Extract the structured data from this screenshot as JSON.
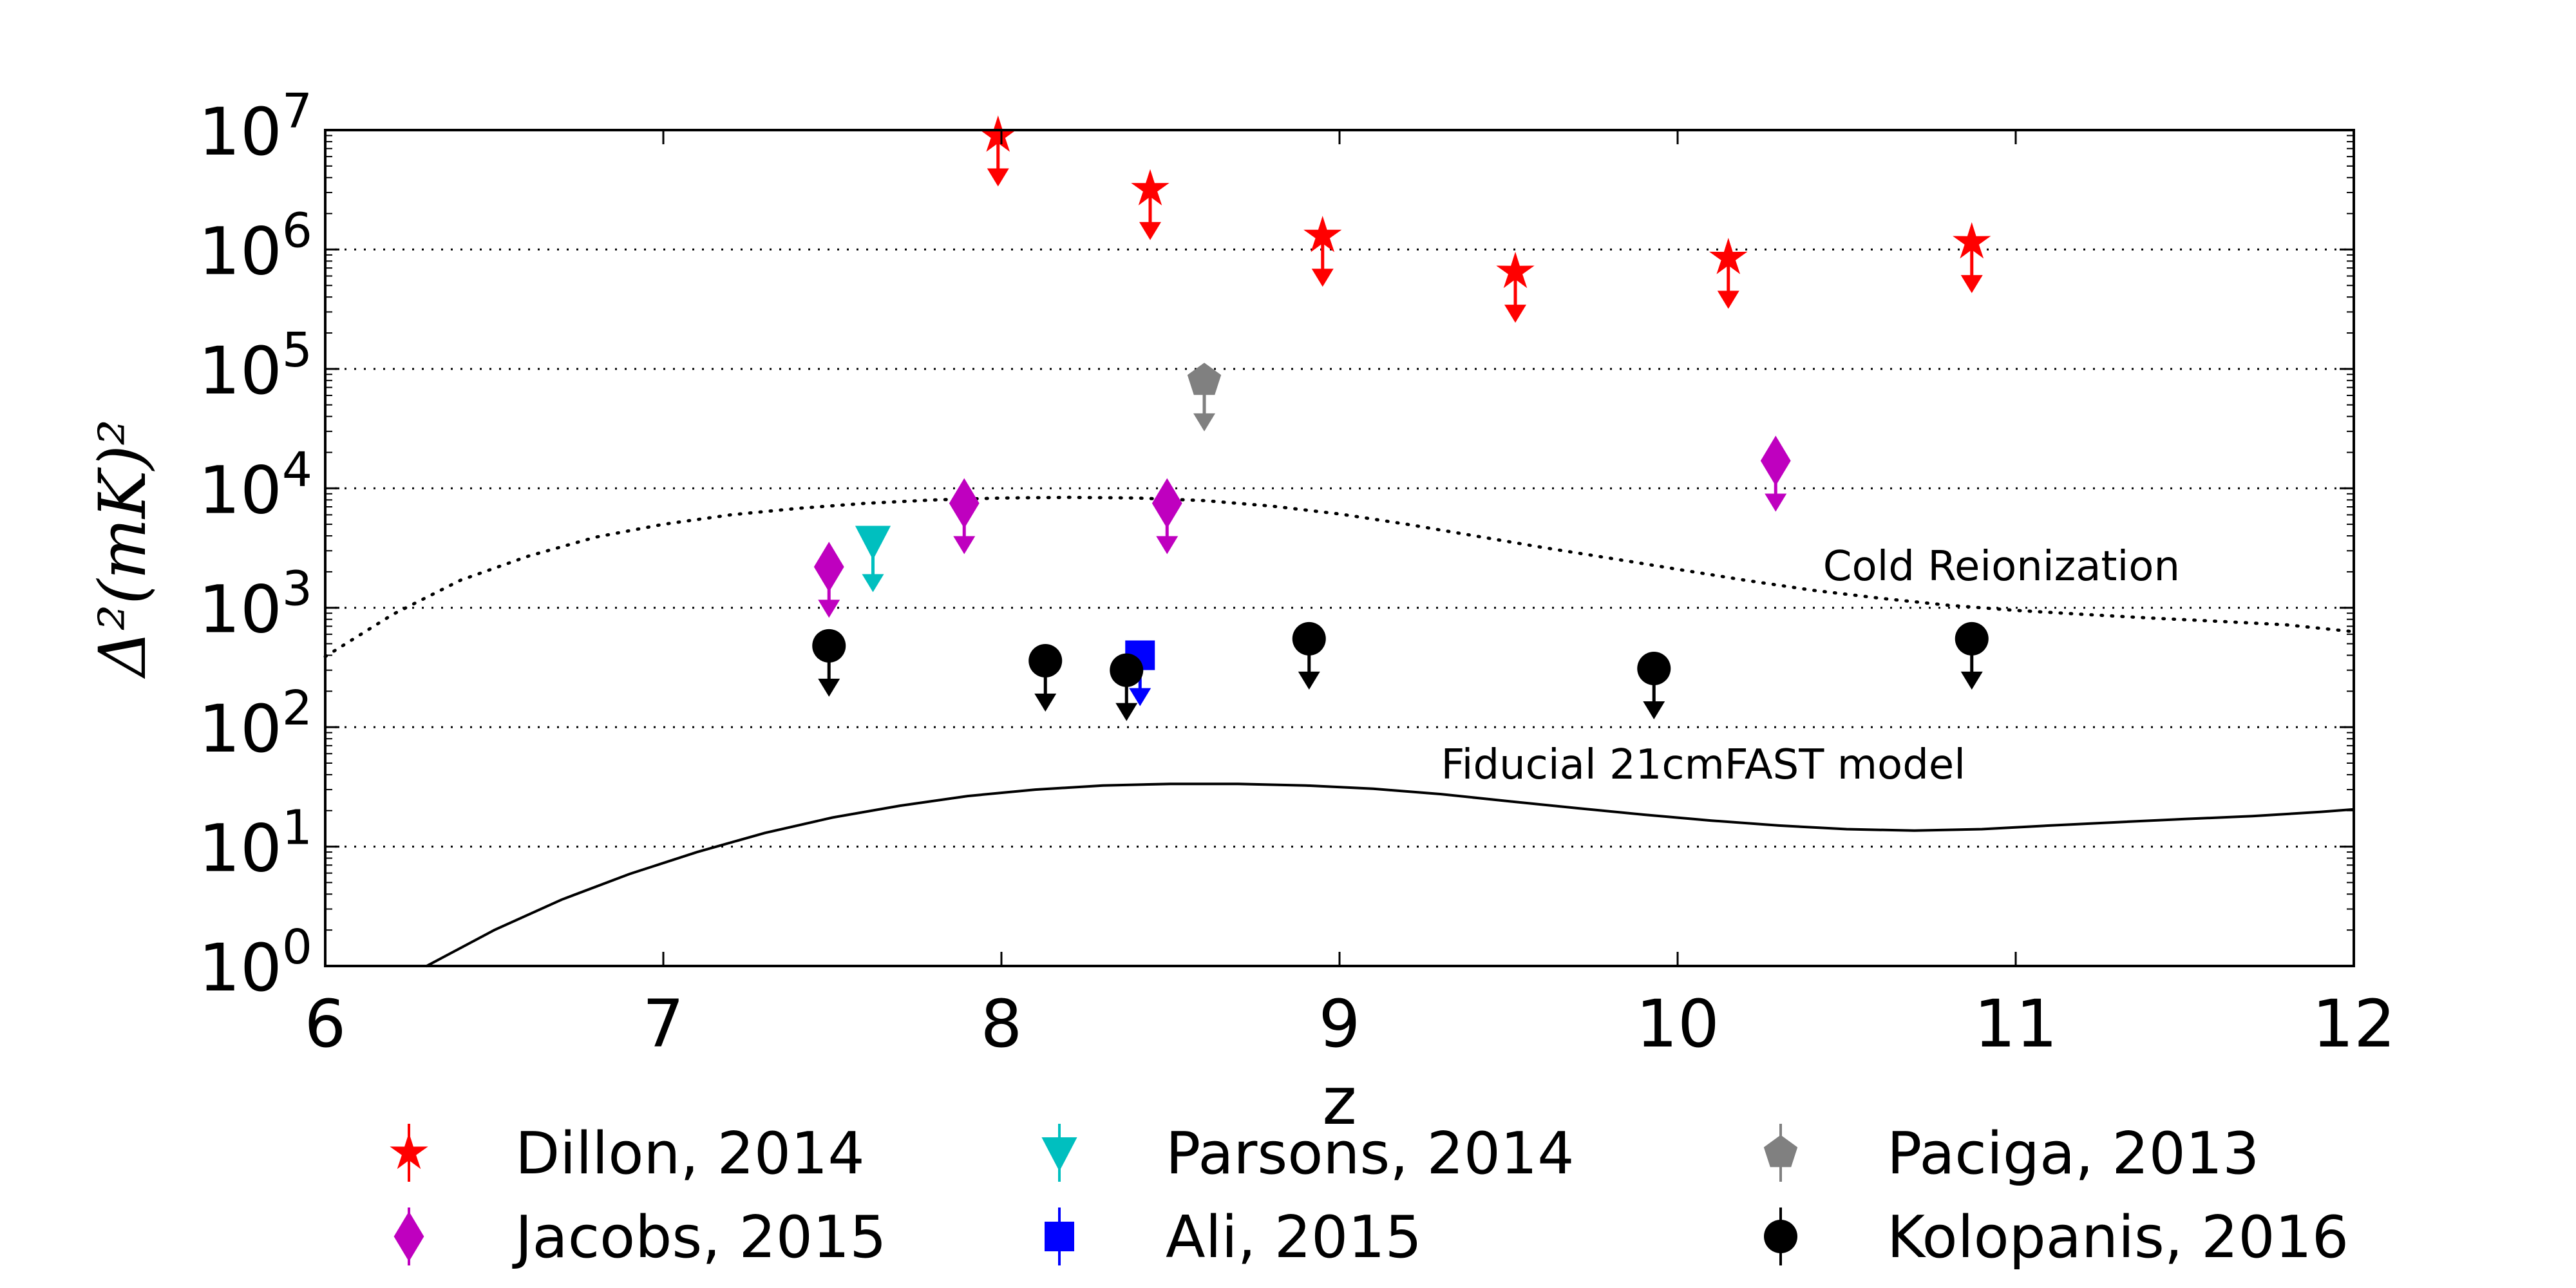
{
  "chart_data": {
    "type": "scatter",
    "xlabel": "z",
    "ylabel": "Δ²(mK)²",
    "xlim": [
      6,
      12
    ],
    "ylim": [
      1,
      10000000
    ],
    "yscale": "log",
    "grid": "horizontal dotted",
    "xticks": [
      6,
      7,
      8,
      9,
      10,
      11,
      12
    ],
    "yticks": [
      {
        "value": 1,
        "base": "10",
        "exp": "0"
      },
      {
        "value": 10,
        "base": "10",
        "exp": "1"
      },
      {
        "value": 100,
        "base": "10",
        "exp": "2"
      },
      {
        "value": 1000,
        "base": "10",
        "exp": "3"
      },
      {
        "value": 10000,
        "base": "10",
        "exp": "4"
      },
      {
        "value": 100000,
        "base": "10",
        "exp": "5"
      },
      {
        "value": 1000000,
        "base": "10",
        "exp": "6"
      },
      {
        "value": 10000000,
        "base": "10",
        "exp": "7"
      }
    ],
    "legend_position": "below plot, three columns",
    "series": [
      {
        "name": "Dillon, 2014",
        "color": "#ff0000",
        "marker": "star",
        "points": [
          {
            "x": 7.99,
            "y": 9000000
          },
          {
            "x": 8.44,
            "y": 3200000
          },
          {
            "x": 8.95,
            "y": 1300000
          },
          {
            "x": 9.52,
            "y": 650000
          },
          {
            "x": 10.15,
            "y": 850000
          },
          {
            "x": 10.87,
            "y": 1150000
          }
        ]
      },
      {
        "name": "Jacobs, 2015",
        "color": "#bf00bf",
        "marker": "thin_diamond",
        "points": [
          {
            "x": 7.49,
            "y": 2200
          },
          {
            "x": 7.89,
            "y": 7500
          },
          {
            "x": 8.49,
            "y": 7500
          },
          {
            "x": 10.29,
            "y": 17000
          }
        ]
      },
      {
        "name": "Parsons, 2014",
        "color": "#00bfbf",
        "marker": "triangle_down",
        "points": [
          {
            "x": 7.62,
            "y": 3600
          }
        ]
      },
      {
        "name": "Ali, 2015",
        "color": "#0000ff",
        "marker": "square",
        "points": [
          {
            "x": 8.41,
            "y": 400
          }
        ]
      },
      {
        "name": "Paciga, 2013",
        "color": "#808080",
        "marker": "pentagon",
        "points": [
          {
            "x": 8.6,
            "y": 80000
          }
        ]
      },
      {
        "name": "Kolopanis, 2016",
        "color": "#000000",
        "marker": "circle",
        "points": [
          {
            "x": 7.49,
            "y": 480
          },
          {
            "x": 8.13,
            "y": 360
          },
          {
            "x": 8.37,
            "y": 300
          },
          {
            "x": 8.91,
            "y": 550
          },
          {
            "x": 9.93,
            "y": 310
          },
          {
            "x": 10.87,
            "y": 550
          }
        ]
      }
    ],
    "curves": [
      {
        "label": "Cold Reionization",
        "style": "dotted",
        "points": [
          [
            6.0,
            390
          ],
          [
            6.2,
            880
          ],
          [
            6.4,
            1700
          ],
          [
            6.6,
            2700
          ],
          [
            6.8,
            3900
          ],
          [
            7.0,
            5000
          ],
          [
            7.2,
            6000
          ],
          [
            7.4,
            6800
          ],
          [
            7.6,
            7500
          ],
          [
            7.8,
            8000
          ],
          [
            8.0,
            8300
          ],
          [
            8.2,
            8400
          ],
          [
            8.4,
            8300
          ],
          [
            8.6,
            7900
          ],
          [
            8.8,
            7100
          ],
          [
            9.0,
            6100
          ],
          [
            9.2,
            5000
          ],
          [
            9.4,
            4000
          ],
          [
            9.6,
            3200
          ],
          [
            9.8,
            2600
          ],
          [
            10.0,
            2100
          ],
          [
            10.2,
            1700
          ],
          [
            10.4,
            1400
          ],
          [
            10.6,
            1200
          ],
          [
            10.8,
            1050
          ],
          [
            11.0,
            950
          ],
          [
            11.2,
            880
          ],
          [
            11.4,
            820
          ],
          [
            11.6,
            770
          ],
          [
            11.8,
            720
          ],
          [
            12.0,
            630
          ]
        ]
      },
      {
        "label": "Fiducial 21cmFAST model",
        "style": "solid",
        "points": [
          [
            6.3,
            1.0
          ],
          [
            6.5,
            2.0
          ],
          [
            6.7,
            3.6
          ],
          [
            6.9,
            5.9
          ],
          [
            7.1,
            9.0
          ],
          [
            7.3,
            13
          ],
          [
            7.5,
            17.5
          ],
          [
            7.7,
            22
          ],
          [
            7.9,
            26.5
          ],
          [
            8.1,
            30
          ],
          [
            8.3,
            32.5
          ],
          [
            8.5,
            33.5
          ],
          [
            8.7,
            33.5
          ],
          [
            8.9,
            32.5
          ],
          [
            9.1,
            30.5
          ],
          [
            9.3,
            27.5
          ],
          [
            9.5,
            24
          ],
          [
            9.7,
            21
          ],
          [
            9.9,
            18.5
          ],
          [
            10.1,
            16.5
          ],
          [
            10.3,
            15
          ],
          [
            10.5,
            14
          ],
          [
            10.7,
            13.6
          ],
          [
            10.9,
            14
          ],
          [
            11.1,
            15
          ],
          [
            11.3,
            16
          ],
          [
            11.5,
            17
          ],
          [
            11.7,
            18
          ],
          [
            11.9,
            19.5
          ],
          [
            12.0,
            20.5
          ]
        ]
      }
    ],
    "annotations": [
      {
        "text": "Cold Reionization",
        "x": 10.43,
        "y": 1700
      },
      {
        "text": "Fiducial 21cmFAST model",
        "x": 9.3,
        "y": 37
      }
    ]
  }
}
